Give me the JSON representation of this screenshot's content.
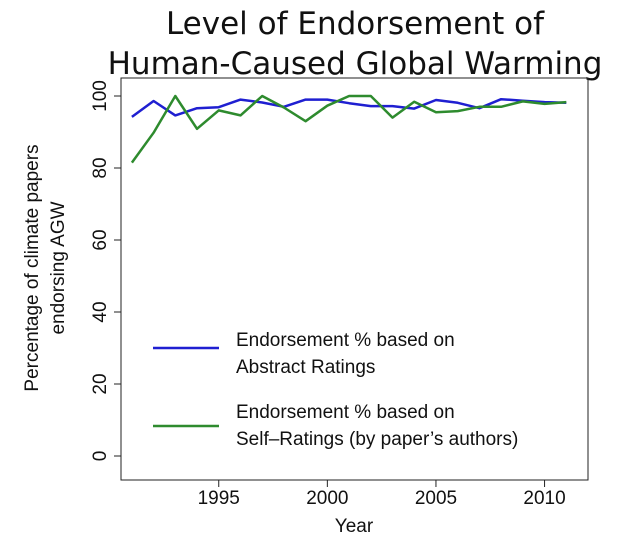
{
  "chart_data": {
    "type": "line",
    "title": [
      "Level of Endorsement of",
      "Human-Caused Global Warming"
    ],
    "xlabel": "Year",
    "ylabel": [
      "Percentage of climate papers",
      "endorsing AGW"
    ],
    "xlim": [
      1990.5,
      2012
    ],
    "ylim": [
      0,
      100
    ],
    "xticks": [
      1995,
      2000,
      2005,
      2010
    ],
    "yticks": [
      0,
      20,
      40,
      60,
      80,
      100
    ],
    "grid": false,
    "legend_position": "bottom-left inside",
    "series": [
      {
        "name": [
          "Endorsement % based on",
          "Abstract Ratings"
        ],
        "color": "#1f1fd1",
        "x": [
          1991,
          1992,
          1993,
          1994,
          1995,
          1996,
          1997,
          1998,
          1999,
          2000,
          2001,
          2002,
          2003,
          2004,
          2005,
          2006,
          2007,
          2008,
          2009,
          2010,
          2011
        ],
        "y": [
          94.2,
          98.6,
          94.6,
          96.6,
          96.9,
          99.0,
          98.2,
          97.0,
          99.0,
          99.0,
          98.0,
          97.2,
          97.2,
          96.5,
          98.9,
          98.1,
          96.6,
          99.1,
          98.7,
          98.3,
          98.1
        ]
      },
      {
        "name": [
          "Endorsement % based on",
          "Self–Ratings (by paper’s authors)"
        ],
        "color": "#2e8b2e",
        "x": [
          1991,
          1992,
          1993,
          1994,
          1995,
          1996,
          1997,
          1998,
          1999,
          2000,
          2001,
          2002,
          2003,
          2004,
          2005,
          2006,
          2007,
          2008,
          2009,
          2010,
          2011
        ],
        "y": [
          81.5,
          89.8,
          100.0,
          90.9,
          96.0,
          94.6,
          100.0,
          96.8,
          93.0,
          97.3,
          100.0,
          100.0,
          94.0,
          98.4,
          95.5,
          95.8,
          97.0,
          97.0,
          98.5,
          97.8,
          98.3
        ]
      }
    ]
  }
}
